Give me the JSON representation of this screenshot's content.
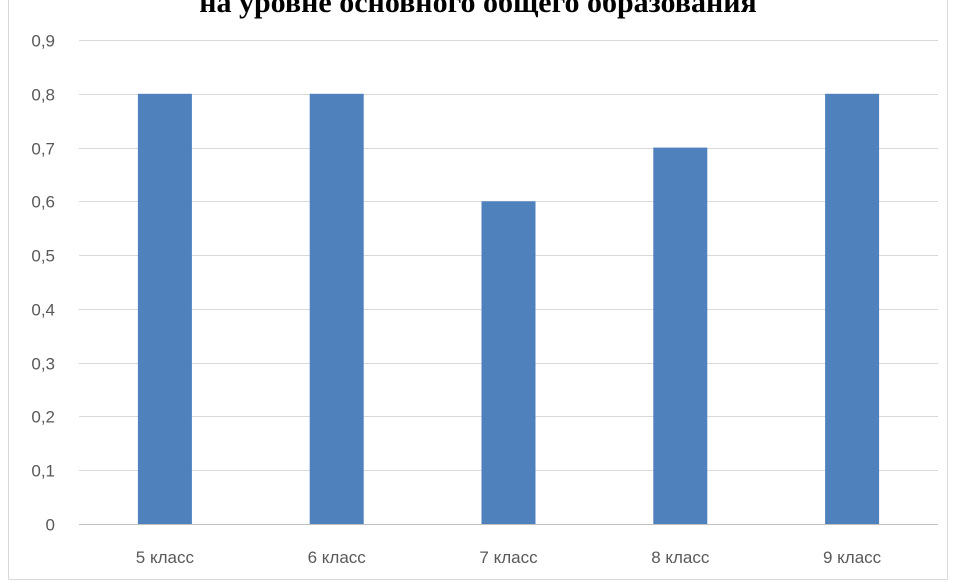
{
  "chart_data": {
    "type": "bar",
    "title": "на уровне основного общего образования",
    "categories": [
      "5 класс",
      "6 класс",
      "7 класс",
      "8 класс",
      "9 класс"
    ],
    "series": [
      {
        "values": [
          0.8,
          0.8,
          0.6,
          0.7,
          0.8
        ]
      }
    ],
    "ylim": [
      0,
      0.9
    ],
    "y_ticks": [
      "0",
      "0,1",
      "0,2",
      "0,3",
      "0,4",
      "0,5",
      "0,6",
      "0,7",
      "0,8",
      "0,9"
    ],
    "grid": true,
    "legend": "none",
    "xlabel": "",
    "ylabel": "",
    "colors": {
      "bar": "#4f81bd",
      "grid": "#d9d9d9",
      "axis": "#bfbfbf",
      "tick_text": "#595959",
      "frame": "#d9d9d9"
    }
  }
}
